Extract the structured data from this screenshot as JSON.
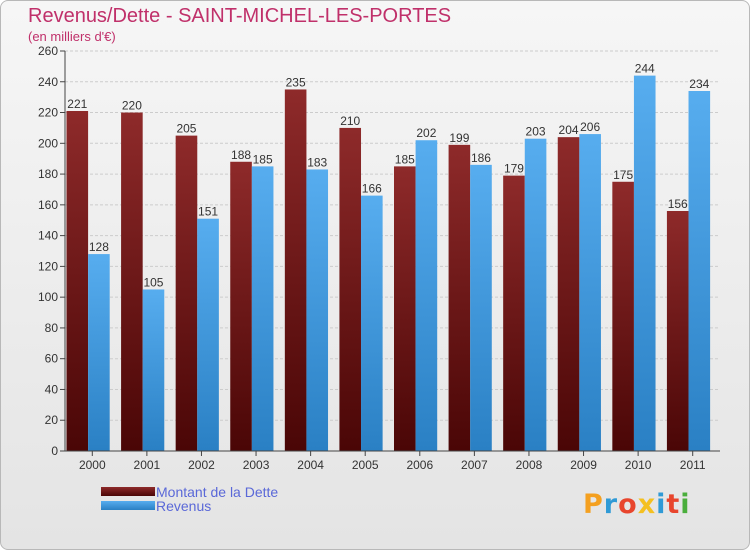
{
  "header": {
    "title": "Revenus/Dette - SAINT-MICHEL-LES-PORTES",
    "subtitle": "(en milliers d'€)"
  },
  "colors": {
    "dette": "#7a1414",
    "revenus": "#3a9be3",
    "title": "#c0306a",
    "legend_text": "#5a68d8"
  },
  "chart_data": {
    "type": "bar",
    "categories": [
      "2000",
      "2001",
      "2002",
      "2003",
      "2004",
      "2005",
      "2006",
      "2007",
      "2008",
      "2009",
      "2010",
      "2011"
    ],
    "series": [
      {
        "name": "Montant de la Dette",
        "values": [
          221,
          220,
          205,
          188,
          235,
          210,
          185,
          199,
          179,
          204,
          175,
          156
        ]
      },
      {
        "name": "Revenus",
        "values": [
          128,
          105,
          151,
          185,
          183,
          166,
          202,
          186,
          203,
          206,
          244,
          234
        ]
      }
    ],
    "title": "Revenus/Dette - SAINT-MICHEL-LES-PORTES",
    "ylabel": "(en milliers d'€)",
    "ylim": [
      0,
      260
    ],
    "yticks": [
      0,
      20,
      40,
      60,
      80,
      100,
      120,
      140,
      160,
      180,
      200,
      220,
      240,
      260
    ],
    "grid": true,
    "legend": "bottom-left"
  },
  "logo": {
    "letters": [
      "P",
      "r",
      "o",
      "x",
      "i",
      "t",
      "i"
    ],
    "colors": [
      "#f4a020",
      "#2f9ad6",
      "#e8452d",
      "#f4c020",
      "#2f9ad6",
      "#e8452d",
      "#4aae3c"
    ]
  }
}
